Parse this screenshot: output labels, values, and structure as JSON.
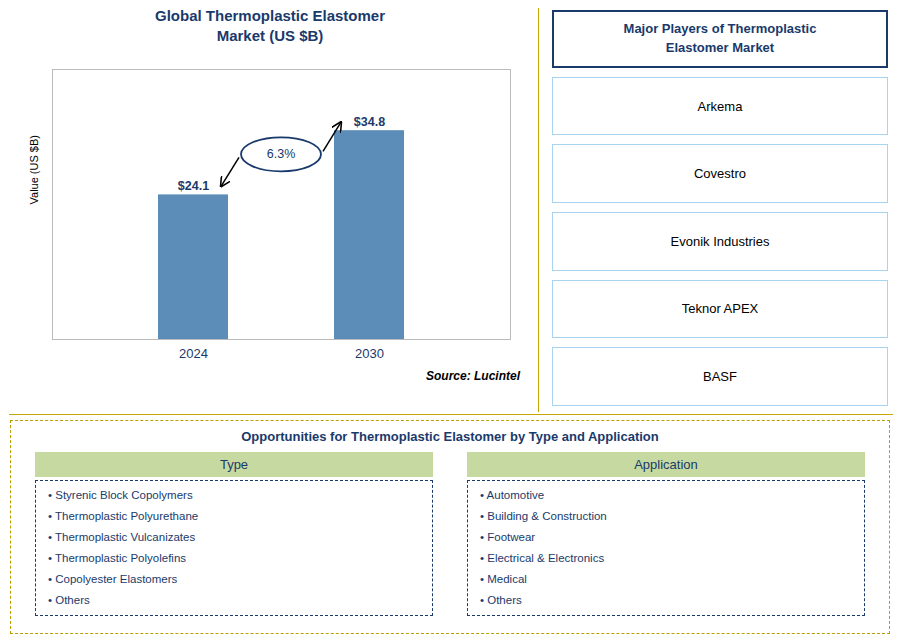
{
  "chart_data": {
    "type": "bar",
    "title": "Global Thermoplastic Elastomer\nMarket (US $B)",
    "categories": [
      "2024",
      "2030"
    ],
    "values": [
      24.1,
      34.8
    ],
    "value_labels": [
      "$24.1",
      "$34.8"
    ],
    "data_labels": true,
    "color": "#5b8db8",
    "ylabel": "Value (US $B)",
    "ylim": [
      0,
      45
    ],
    "yticks": [],
    "tick_labels": "x",
    "grid": false,
    "annotation": "6.3%",
    "source": "Source: Lucintel",
    "players_title": "Major Players of Thermoplastic\nElastomer Market",
    "players": [
      "Arkema",
      "Covestro",
      "Evonik Industries",
      "Teknor APEX",
      "BASF"
    ],
    "opportunities_title": "Opportunities for Thermoplastic Elastomer by Type and Application",
    "type_header": "Type",
    "type_items": [
      "• Styrenic Block Copolymers",
      "• Thermoplastic Polyurethane",
      "• Thermoplastic Vulcanizates",
      "• Thermoplastic Polyolefins",
      "• Copolyester Elastomers",
      "• Others"
    ],
    "application_header": "Application",
    "application_items": [
      "• Automotive",
      "• Building & Construction",
      "• Footwear",
      "• Electrical & Electronics",
      "• Medical",
      "• Others"
    ]
  }
}
